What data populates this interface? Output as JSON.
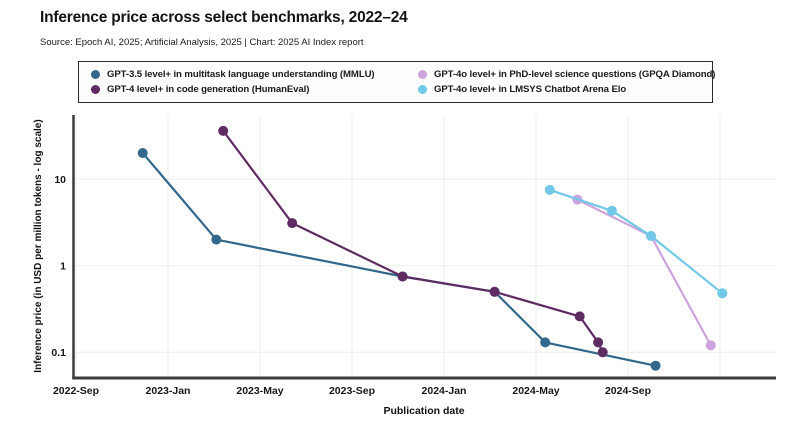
{
  "header": {
    "title": "Inference price across select benchmarks, 2022–24",
    "source": "Source: Epoch AI, 2025; Artificial Analysis, 2025 | Chart: 2025 AI Index report"
  },
  "chart_data": {
    "type": "line",
    "title": "Inference price across select benchmarks, 2022–24",
    "xlabel": "Publication date",
    "ylabel": "Inference price (in USD per million tokens - log scale)",
    "y_scale": "log",
    "ylim": [
      0.05,
      55
    ],
    "grid": true,
    "legend_position": "top",
    "x_ticks": [
      {
        "m": 0,
        "label": "2022-Sep"
      },
      {
        "m": 4,
        "label": "2023-Jan"
      },
      {
        "m": 8,
        "label": "2023-May"
      },
      {
        "m": 12,
        "label": "2023-Sep"
      },
      {
        "m": 16,
        "label": "2024-Jan"
      },
      {
        "m": 20,
        "label": "2024-May"
      },
      {
        "m": 24,
        "label": "2024-Sep"
      }
    ],
    "grid_months": [
      0,
      4,
      8,
      12,
      16,
      20,
      24,
      28
    ],
    "y_ticks": [
      {
        "v": 10,
        "label": "10"
      },
      {
        "v": 1,
        "label": "1"
      },
      {
        "v": 0.1,
        "label": "0.1"
      }
    ],
    "series": [
      {
        "name": "GPT-3.5 level+ in multitask language understanding (MMLU)",
        "color": "#33678c",
        "points": [
          {
            "date": "2022-Nov",
            "m": 2.9,
            "v": 20
          },
          {
            "date": "2023-Mar",
            "m": 6.1,
            "v": 2.0
          },
          {
            "date": "2023-Nov",
            "m": 14.2,
            "v": 0.75
          },
          {
            "date": "2024-Mar",
            "m": 18.2,
            "v": 0.5
          },
          {
            "date": "2024-May",
            "m": 20.4,
            "v": 0.13
          },
          {
            "date": "2024-Oct",
            "m": 25.2,
            "v": 0.07
          }
        ]
      },
      {
        "name": "GPT-4 level+ in code generation (HumanEval)",
        "color": "#5e2b63",
        "points": [
          {
            "date": "2023-Mar",
            "m": 6.4,
            "v": 36
          },
          {
            "date": "2023-Jun",
            "m": 9.4,
            "v": 3.1
          },
          {
            "date": "2023-Nov",
            "m": 14.2,
            "v": 0.75
          },
          {
            "date": "2024-Mar",
            "m": 18.2,
            "v": 0.5
          },
          {
            "date": "2024-Jul",
            "m": 21.9,
            "v": 0.26
          },
          {
            "date": "2024-Jul",
            "m": 22.7,
            "v": 0.13
          },
          {
            "date": "2024-Aug",
            "m": 22.9,
            "v": 0.1
          }
        ]
      },
      {
        "name": "GPT-4o level+ in PhD-level science questions (GPQA Diamond)",
        "color": "#cda3de",
        "points": [
          {
            "date": "2024-Jun",
            "m": 21.8,
            "v": 5.8
          },
          {
            "date": "2024-Oct",
            "m": 25.0,
            "v": 2.2
          },
          {
            "date": "2024-Dec",
            "m": 27.6,
            "v": 0.12
          }
        ]
      },
      {
        "name": "GPT-4o level+ in LMSYS Chatbot Arena Elo",
        "color": "#72c8e8",
        "points": [
          {
            "date": "2024-May",
            "m": 20.6,
            "v": 7.5
          },
          {
            "date": "2024-Aug",
            "m": 23.3,
            "v": 4.3
          },
          {
            "date": "2024-Oct",
            "m": 25.0,
            "v": 2.2
          },
          {
            "date": "2025-Jan",
            "m": 28.1,
            "v": 0.48
          }
        ]
      }
    ]
  }
}
